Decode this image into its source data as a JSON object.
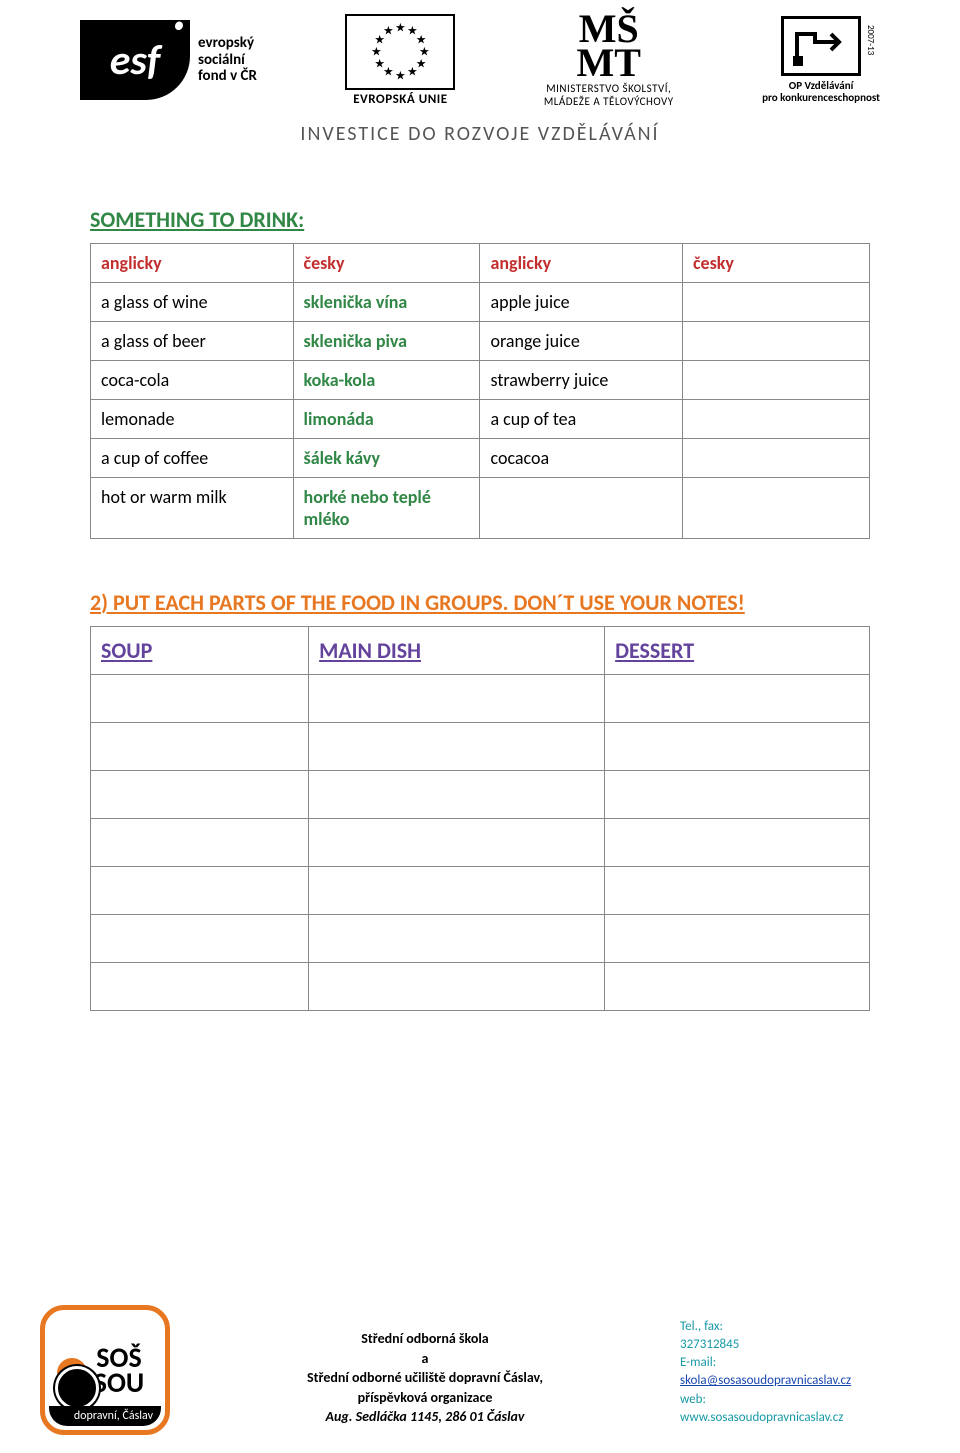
{
  "header": {
    "esf_label_line1": "evropský",
    "esf_label_line2": "sociální",
    "esf_label_line3": "fond v ČR",
    "eu_label": "EVROPSKÁ UNIE",
    "msmt_line1": "MINISTERSTVO ŠKOLSTVÍ,",
    "msmt_line2": "MLÁDEŽE A TĚLOVÝCHOVY",
    "opvk_line1": "OP Vzdělávání",
    "opvk_line2": "pro konkurenceschopnost",
    "opvk_side": "2007-13",
    "tagline": "INVESTICE DO ROZVOJE VZDĚLÁVÁNÍ"
  },
  "colors": {
    "title_green": "#318746",
    "header_red": "#c32f2f",
    "cz_green": "#318746",
    "instruction_orange": "#e87722",
    "group_purple": "#63439b",
    "footer_teal": "#1799a6",
    "footer_orange": "#e87722",
    "link_blue": "#1846b0"
  },
  "section_title": "SOMETHING TO DRINK:",
  "vocab_table": {
    "columns": [
      "anglicky",
      "česky",
      "anglicky",
      "česky"
    ],
    "rows": [
      [
        "a glass of wine",
        "sklenička vína",
        "apple juice",
        ""
      ],
      [
        "a glass of beer",
        "sklenička piva",
        "orange juice",
        ""
      ],
      [
        "coca-cola",
        "koka-kola",
        "strawberry juice",
        ""
      ],
      [
        "lemonade",
        "limonáda",
        "a cup of tea",
        ""
      ],
      [
        "a cup of coffee",
        "šálek kávy",
        "cocacoa",
        ""
      ],
      [
        "hot or warm milk",
        "horké nebo teplé mléko",
        "",
        ""
      ]
    ],
    "col_widths_pct": [
      26,
      24,
      26,
      24
    ]
  },
  "instruction_prefix": "2)",
  "instruction_text": "PUT EACH PARTS OF THE FOOD IN GROUPS. DON´T USE YOUR NOTES!",
  "groups_table": {
    "columns": [
      "SOUP",
      "MAIN DISH",
      "DESSERT"
    ],
    "col_widths_pct": [
      28,
      38,
      34
    ],
    "empty_rows": 7
  },
  "footer": {
    "logo_top": "SOŠ",
    "logo_mid": "a",
    "logo_bottom": "SOU",
    "logo_strip": "dopravní, Čáslav",
    "center_line1": "Střední odborná škola",
    "center_line2": "a",
    "center_line3": "Střední odborné učiliště dopravní Čáslav,",
    "center_line4": "příspěvková organizace",
    "center_line5": "Aug. Sedláčka 1145, 286 01 Čáslav",
    "right_tel_label": "Tel., fax:",
    "right_tel": "327312845",
    "right_email_label": "E-mail:",
    "right_email": "skola@sosasoudopravnicaslav.cz",
    "right_web_label": "web:",
    "right_web": "www.sosasoudopravnicaslav.cz"
  }
}
